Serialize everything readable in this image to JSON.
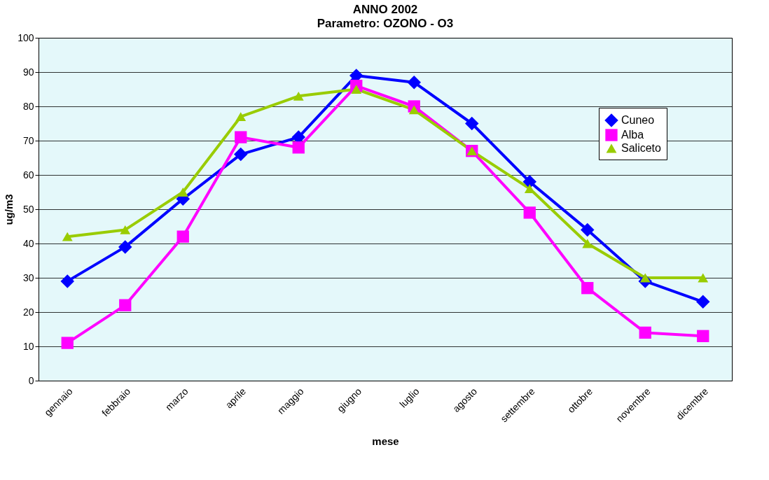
{
  "chart_data": {
    "type": "line",
    "title": "ANNO  2002",
    "subtitle": "Parametro: OZONO - O3",
    "xlabel": "mese",
    "ylabel": "ug/m3",
    "categories": [
      "gennaio",
      "febbraio",
      "marzo",
      "aprile",
      "maggio",
      "giugno",
      "luglio",
      "agosto",
      "settembre",
      "ottobre",
      "novembre",
      "dicembre"
    ],
    "series": [
      {
        "name": "Cuneo",
        "color": "#0000ff",
        "marker": "diamond",
        "values": [
          29,
          39,
          53,
          66,
          71,
          89,
          87,
          75,
          58,
          44,
          29,
          23
        ]
      },
      {
        "name": "Alba",
        "color": "#ff00ff",
        "marker": "square",
        "values": [
          11,
          22,
          42,
          71,
          68,
          86,
          80,
          67,
          49,
          27,
          14,
          13
        ]
      },
      {
        "name": "Saliceto",
        "color": "#99cc00",
        "marker": "triangle",
        "values": [
          42,
          44,
          55,
          77,
          83,
          85,
          79,
          67,
          56,
          40,
          30,
          30
        ]
      }
    ],
    "ylim": [
      0,
      100
    ],
    "yticks": [
      0,
      10,
      20,
      30,
      40,
      50,
      60,
      70,
      80,
      90,
      100
    ],
    "grid": "y",
    "legend": "right",
    "line_style": "solid"
  }
}
